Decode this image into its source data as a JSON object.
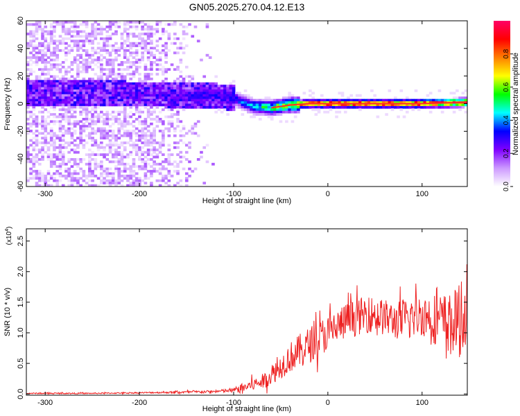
{
  "title": "GN05.2025.270.04.12.E13",
  "chart_data": [
    {
      "type": "heatmap",
      "xlabel": "Height of straight line (km)",
      "ylabel": "Frequency (Hz)",
      "xlim": [
        -320,
        148
      ],
      "ylim": [
        -60,
        60
      ],
      "xticks": [
        -300,
        -200,
        -100,
        0,
        100
      ],
      "yticks": [
        -60,
        -40,
        -20,
        0,
        20,
        40,
        60
      ],
      "colorbar": {
        "label": "Normalized spectral amplitude",
        "range": [
          0.0,
          1.0
        ],
        "ticks": [
          "0.0",
          "0.2",
          "0.4",
          "0.6",
          "0.8"
        ],
        "colors": [
          "#ffffff",
          "#cc99ff",
          "#7f00ff",
          "#0000ff",
          "#00ffff",
          "#00ff00",
          "#ffff00",
          "#ff7f00",
          "#ff0000",
          "#ff0066"
        ]
      },
      "ridge": {
        "x": [
          -320,
          -250,
          -200,
          -150,
          -120,
          -100,
          -80,
          -60,
          -40,
          -20,
          0,
          50,
          100,
          148
        ],
        "frequency_hz": [
          8,
          8,
          7,
          6,
          6,
          4,
          -2,
          -3,
          -1,
          0,
          0,
          0,
          0,
          1
        ],
        "amplitude": [
          0.1,
          0.15,
          0.2,
          0.28,
          0.3,
          0.3,
          0.45,
          0.55,
          0.7,
          0.85,
          0.9,
          0.9,
          0.9,
          0.9
        ]
      },
      "noise_region_x": [
        -320,
        -120
      ]
    },
    {
      "type": "line",
      "xlabel": "Height of straight line (km)",
      "ylabel": "SNR (10 * v/v)",
      "y_multiplier": "(x10",
      "y_multiplier_exp": "4",
      "y_multiplier_close": ")",
      "xlim": [
        -320,
        148
      ],
      "ylim": [
        -0.02,
        2.7
      ],
      "xticks": [
        -300,
        -200,
        -100,
        0,
        100
      ],
      "yticks": [
        "0.0",
        "0.5",
        "1.0",
        "1.5",
        "2.0",
        "2.5"
      ],
      "series": [
        {
          "color": "#ee2222",
          "x": [
            -320,
            -250,
            -200,
            -150,
            -120,
            -100,
            -90,
            -80,
            -70,
            -60,
            -50,
            -40,
            -30,
            -20,
            -10,
            0,
            10,
            20,
            30,
            40,
            50,
            60,
            70,
            80,
            90,
            100,
            110,
            120,
            130,
            140,
            148
          ],
          "values": [
            0.01,
            0.01,
            0.02,
            0.03,
            0.04,
            0.06,
            0.1,
            0.15,
            0.2,
            0.3,
            0.45,
            0.6,
            0.7,
            0.8,
            0.9,
            1.0,
            1.1,
            1.2,
            1.25,
            1.3,
            1.3,
            1.25,
            1.2,
            1.2,
            1.25,
            1.3,
            1.25,
            1.2,
            1.15,
            1.2,
            1.25
          ],
          "spread": [
            0.01,
            0.01,
            0.01,
            0.02,
            0.02,
            0.04,
            0.08,
            0.1,
            0.12,
            0.15,
            0.2,
            0.25,
            0.28,
            0.3,
            0.3,
            0.3,
            0.3,
            0.3,
            0.3,
            0.3,
            0.3,
            0.3,
            0.3,
            0.35,
            0.35,
            0.35,
            0.4,
            0.45,
            0.5,
            0.6,
            0.6
          ]
        }
      ]
    }
  ]
}
